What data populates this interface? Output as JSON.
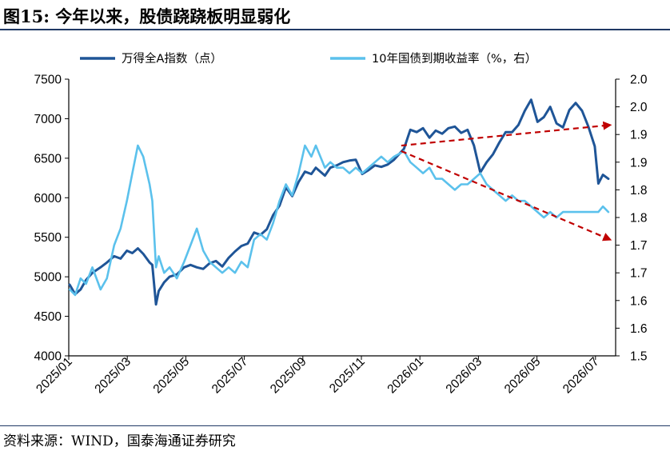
{
  "title": {
    "prefix": "图15:",
    "text": "今年以来，股债跷跷板明显弱化"
  },
  "source": "资料来源：WIND，国泰海通证券研究",
  "chart_data": {
    "type": "line",
    "x_tick_labels": [
      "2025/01",
      "2025/03",
      "2025/05",
      "2025/07",
      "2025/09",
      "2025/11",
      "2026/01",
      "2026/03",
      "2026/05",
      "2026/07"
    ],
    "y_left_ticks": [
      "7500",
      "7000",
      "6500",
      "6000",
      "5500",
      "5000",
      "4500",
      "4000"
    ],
    "y_right_ticks": [
      "2.0",
      "2.0",
      "1.9",
      "1.9",
      "1.8",
      "1.8",
      "1.7",
      "1.7",
      "1.6",
      "1.6",
      "1.5"
    ],
    "y_left_range": [
      4000,
      7500
    ],
    "y_right_range": [
      1.5,
      2.0
    ],
    "series": [
      {
        "name": "万得全A指数（点）",
        "axis": "left",
        "color": "#1f5597",
        "points": [
          [
            "2025-01-02",
            4900
          ],
          [
            "2025-01-08",
            4780
          ],
          [
            "2025-01-14",
            4840
          ],
          [
            "2025-01-20",
            4960
          ],
          [
            "2025-01-27",
            5050
          ],
          [
            "2025-02-05",
            5120
          ],
          [
            "2025-02-12",
            5180
          ],
          [
            "2025-02-20",
            5260
          ],
          [
            "2025-02-27",
            5230
          ],
          [
            "2025-03-06",
            5330
          ],
          [
            "2025-03-12",
            5300
          ],
          [
            "2025-03-18",
            5360
          ],
          [
            "2025-03-24",
            5290
          ],
          [
            "2025-03-31",
            5180
          ],
          [
            "2025-04-03",
            5150
          ],
          [
            "2025-04-07",
            4650
          ],
          [
            "2025-04-10",
            4820
          ],
          [
            "2025-04-16",
            4930
          ],
          [
            "2025-04-22",
            5000
          ],
          [
            "2025-04-30",
            5030
          ],
          [
            "2025-05-08",
            5120
          ],
          [
            "2025-05-15",
            5150
          ],
          [
            "2025-05-22",
            5120
          ],
          [
            "2025-05-29",
            5100
          ],
          [
            "2025-06-05",
            5170
          ],
          [
            "2025-06-12",
            5200
          ],
          [
            "2025-06-19",
            5130
          ],
          [
            "2025-06-26",
            5240
          ],
          [
            "2025-07-03",
            5320
          ],
          [
            "2025-07-10",
            5390
          ],
          [
            "2025-07-17",
            5420
          ],
          [
            "2025-07-24",
            5560
          ],
          [
            "2025-07-31",
            5530
          ],
          [
            "2025-08-07",
            5600
          ],
          [
            "2025-08-14",
            5780
          ],
          [
            "2025-08-21",
            5900
          ],
          [
            "2025-08-28",
            6130
          ],
          [
            "2025-09-04",
            6020
          ],
          [
            "2025-09-11",
            6200
          ],
          [
            "2025-09-18",
            6330
          ],
          [
            "2025-09-25",
            6300
          ],
          [
            "2025-09-30",
            6380
          ],
          [
            "2025-10-10",
            6280
          ],
          [
            "2025-10-16",
            6380
          ],
          [
            "2025-10-23",
            6410
          ],
          [
            "2025-10-30",
            6450
          ],
          [
            "2025-11-06",
            6470
          ],
          [
            "2025-11-13",
            6480
          ],
          [
            "2025-11-20",
            6300
          ],
          [
            "2025-11-27",
            6350
          ],
          [
            "2025-12-04",
            6410
          ],
          [
            "2025-12-11",
            6390
          ],
          [
            "2025-12-18",
            6420
          ],
          [
            "2025-12-25",
            6480
          ],
          [
            "2026-01-05",
            6620
          ],
          [
            "2026-01-12",
            6860
          ],
          [
            "2026-01-19",
            6830
          ],
          [
            "2026-01-26",
            6880
          ],
          [
            "2026-02-02",
            6760
          ],
          [
            "2026-02-09",
            6850
          ],
          [
            "2026-02-16",
            6810
          ],
          [
            "2026-02-23",
            6880
          ],
          [
            "2026-03-02",
            6900
          ],
          [
            "2026-03-09",
            6820
          ],
          [
            "2026-03-16",
            6860
          ],
          [
            "2026-03-23",
            6660
          ],
          [
            "2026-03-30",
            6320
          ],
          [
            "2026-04-06",
            6450
          ],
          [
            "2026-04-13",
            6550
          ],
          [
            "2026-04-20",
            6700
          ],
          [
            "2026-04-27",
            6830
          ],
          [
            "2026-05-04",
            6830
          ],
          [
            "2026-05-11",
            6920
          ],
          [
            "2026-05-18",
            7100
          ],
          [
            "2026-05-25",
            7240
          ],
          [
            "2026-06-01",
            6960
          ],
          [
            "2026-06-08",
            7020
          ],
          [
            "2026-06-15",
            7150
          ],
          [
            "2026-06-22",
            6940
          ],
          [
            "2026-06-29",
            6890
          ],
          [
            "2026-07-06",
            7110
          ],
          [
            "2026-07-13",
            7200
          ],
          [
            "2026-07-20",
            7100
          ],
          [
            "2026-07-27",
            6900
          ],
          [
            "2026-08-03",
            6650
          ],
          [
            "2026-08-07",
            6180
          ],
          [
            "2026-08-12",
            6290
          ],
          [
            "2026-08-18",
            6240
          ]
        ]
      },
      {
        "name": "10年国债到期收益率（%，右）",
        "axis": "right",
        "color": "#5bc1ec",
        "points": [
          [
            "2025-01-02",
            1.62
          ],
          [
            "2025-01-08",
            1.61
          ],
          [
            "2025-01-14",
            1.64
          ],
          [
            "2025-01-20",
            1.63
          ],
          [
            "2025-01-27",
            1.66
          ],
          [
            "2025-02-05",
            1.62
          ],
          [
            "2025-02-12",
            1.64
          ],
          [
            "2025-02-20",
            1.7
          ],
          [
            "2025-02-27",
            1.73
          ],
          [
            "2025-03-06",
            1.78
          ],
          [
            "2025-03-12",
            1.83
          ],
          [
            "2025-03-18",
            1.88
          ],
          [
            "2025-03-24",
            1.86
          ],
          [
            "2025-03-31",
            1.81
          ],
          [
            "2025-04-03",
            1.78
          ],
          [
            "2025-04-07",
            1.66
          ],
          [
            "2025-04-10",
            1.68
          ],
          [
            "2025-04-16",
            1.65
          ],
          [
            "2025-04-22",
            1.66
          ],
          [
            "2025-04-30",
            1.64
          ],
          [
            "2025-05-08",
            1.67
          ],
          [
            "2025-05-15",
            1.7
          ],
          [
            "2025-05-22",
            1.73
          ],
          [
            "2025-05-29",
            1.69
          ],
          [
            "2025-06-05",
            1.67
          ],
          [
            "2025-06-12",
            1.66
          ],
          [
            "2025-06-19",
            1.65
          ],
          [
            "2025-06-26",
            1.66
          ],
          [
            "2025-07-03",
            1.65
          ],
          [
            "2025-07-10",
            1.67
          ],
          [
            "2025-07-17",
            1.66
          ],
          [
            "2025-07-24",
            1.71
          ],
          [
            "2025-07-31",
            1.72
          ],
          [
            "2025-08-07",
            1.71
          ],
          [
            "2025-08-14",
            1.74
          ],
          [
            "2025-08-21",
            1.78
          ],
          [
            "2025-08-28",
            1.81
          ],
          [
            "2025-09-04",
            1.79
          ],
          [
            "2025-09-11",
            1.83
          ],
          [
            "2025-09-18",
            1.88
          ],
          [
            "2025-09-25",
            1.86
          ],
          [
            "2025-09-30",
            1.88
          ],
          [
            "2025-10-10",
            1.84
          ],
          [
            "2025-10-16",
            1.85
          ],
          [
            "2025-10-23",
            1.84
          ],
          [
            "2025-10-30",
            1.84
          ],
          [
            "2025-11-06",
            1.83
          ],
          [
            "2025-11-13",
            1.84
          ],
          [
            "2025-11-20",
            1.83
          ],
          [
            "2025-11-27",
            1.84
          ],
          [
            "2025-12-04",
            1.85
          ],
          [
            "2025-12-11",
            1.86
          ],
          [
            "2025-12-18",
            1.85
          ],
          [
            "2025-12-25",
            1.86
          ],
          [
            "2026-01-05",
            1.87
          ],
          [
            "2026-01-12",
            1.85
          ],
          [
            "2026-01-19",
            1.84
          ],
          [
            "2026-01-26",
            1.83
          ],
          [
            "2026-02-02",
            1.84
          ],
          [
            "2026-02-09",
            1.82
          ],
          [
            "2026-02-16",
            1.82
          ],
          [
            "2026-02-23",
            1.81
          ],
          [
            "2026-03-02",
            1.8
          ],
          [
            "2026-03-09",
            1.81
          ],
          [
            "2026-03-16",
            1.81
          ],
          [
            "2026-03-23",
            1.82
          ],
          [
            "2026-03-30",
            1.83
          ],
          [
            "2026-04-06",
            1.81
          ],
          [
            "2026-04-13",
            1.8
          ],
          [
            "2026-04-20",
            1.79
          ],
          [
            "2026-04-27",
            1.78
          ],
          [
            "2026-05-04",
            1.79
          ],
          [
            "2026-05-11",
            1.78
          ],
          [
            "2026-05-18",
            1.78
          ],
          [
            "2026-05-25",
            1.77
          ],
          [
            "2026-06-01",
            1.76
          ],
          [
            "2026-06-08",
            1.75
          ],
          [
            "2026-06-15",
            1.76
          ],
          [
            "2026-06-22",
            1.75
          ],
          [
            "2026-06-29",
            1.76
          ],
          [
            "2026-07-06",
            1.76
          ],
          [
            "2026-07-13",
            1.76
          ],
          [
            "2026-07-20",
            1.76
          ],
          [
            "2026-07-27",
            1.76
          ],
          [
            "2026-08-03",
            1.76
          ],
          [
            "2026-08-07",
            1.76
          ],
          [
            "2026-08-12",
            1.77
          ],
          [
            "2026-08-18",
            1.76
          ]
        ]
      }
    ],
    "annotations": [
      {
        "type": "dashed-arrow",
        "color": "#c00000",
        "axis": "left",
        "from": [
          "2026-01-02",
          6660
        ],
        "to": [
          "2026-08-20",
          6920
        ]
      },
      {
        "type": "dashed-arrow",
        "color": "#c00000",
        "axis": "right",
        "from": [
          "2026-01-02",
          1.87
        ],
        "to": [
          "2026-08-20",
          1.71
        ]
      }
    ]
  }
}
